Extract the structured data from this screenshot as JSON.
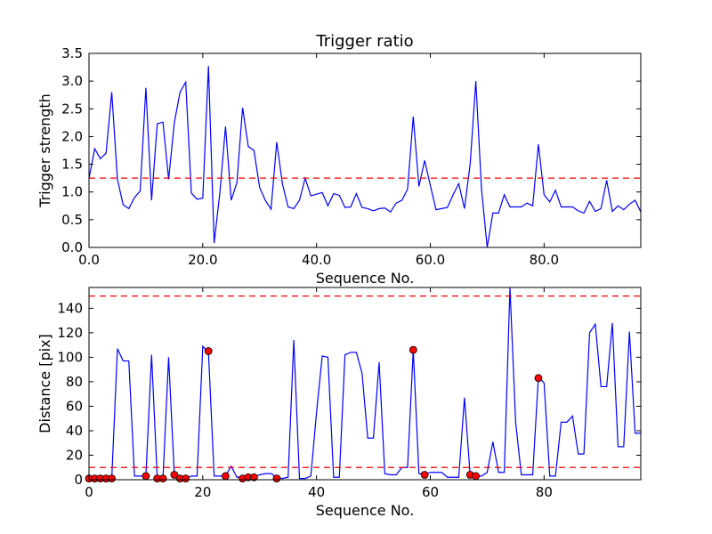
{
  "chart_data": [
    {
      "type": "line",
      "title": "Trigger ratio",
      "xlabel": "Sequence No.",
      "ylabel": "Trigger strength",
      "xlim": [
        0,
        97
      ],
      "ylim": [
        0,
        3.5
      ],
      "xticks": [
        0,
        20,
        40,
        60,
        80
      ],
      "yticks": [
        0.0,
        0.5,
        1.0,
        1.5,
        2.0,
        2.5,
        3.0,
        3.5
      ],
      "tick_format": "fixed1",
      "grid": false,
      "series": [
        {
          "color": "#0000ff",
          "x": [
            0,
            1,
            2,
            3,
            4,
            5,
            6,
            7,
            8,
            9,
            10,
            11,
            12,
            13,
            14,
            15,
            16,
            17,
            18,
            19,
            20,
            21,
            22,
            23,
            24,
            25,
            26,
            27,
            28,
            29,
            30,
            31,
            32,
            33,
            34,
            35,
            36,
            37,
            38,
            39,
            40,
            41,
            42,
            43,
            44,
            45,
            46,
            47,
            48,
            49,
            50,
            51,
            52,
            53,
            54,
            55,
            56,
            57,
            58,
            59,
            60,
            61,
            62,
            63,
            64,
            65,
            66,
            67,
            68,
            69,
            70,
            71,
            72,
            73,
            74,
            75,
            76,
            77,
            78,
            79,
            80,
            81,
            82,
            83,
            84,
            85,
            86,
            87,
            88,
            89,
            90,
            91,
            92,
            93,
            94,
            95,
            96,
            97
          ],
          "values": [
            1.25,
            1.78,
            1.6,
            1.7,
            2.8,
            1.23,
            0.77,
            0.7,
            0.9,
            1.02,
            2.88,
            0.85,
            2.23,
            2.26,
            1.23,
            2.25,
            2.8,
            2.98,
            0.98,
            0.87,
            0.89,
            3.27,
            0.08,
            0.98,
            2.18,
            0.85,
            1.17,
            2.52,
            1.82,
            1.75,
            1.08,
            0.85,
            0.69,
            1.9,
            1.15,
            0.73,
            0.7,
            0.85,
            1.25,
            0.93,
            0.96,
            0.99,
            0.75,
            0.97,
            0.94,
            0.72,
            0.73,
            0.97,
            0.72,
            0.7,
            0.66,
            0.7,
            0.71,
            0.64,
            0.8,
            0.85,
            1.05,
            2.36,
            1.1,
            1.57,
            1.12,
            0.68,
            0.7,
            0.72,
            0.95,
            1.15,
            0.7,
            1.5,
            3.0,
            1.05,
            0.0,
            0.62,
            0.62,
            0.95,
            0.73,
            0.73,
            0.73,
            0.8,
            0.75,
            1.86,
            0.95,
            0.82,
            1.03,
            0.73,
            0.73,
            0.73,
            0.66,
            0.62,
            0.83,
            0.65,
            0.7,
            1.21,
            0.65,
            0.75,
            0.68,
            0.78,
            0.85,
            0.64
          ]
        }
      ],
      "hlines": [
        {
          "y": 1.25,
          "color": "#ff0000",
          "style": "dashed"
        }
      ]
    },
    {
      "type": "line",
      "title": "",
      "xlabel": "Sequence No.",
      "ylabel": "Distance [pix]",
      "xlim": [
        0,
        97
      ],
      "ylim": [
        0,
        157
      ],
      "xticks": [
        0,
        20,
        40,
        60,
        80
      ],
      "yticks": [
        0,
        20,
        40,
        60,
        80,
        100,
        120,
        140
      ],
      "tick_format": "int",
      "grid": false,
      "series": [
        {
          "color": "#0000ff",
          "x": [
            0,
            1,
            2,
            3,
            4,
            5,
            6,
            7,
            8,
            9,
            10,
            11,
            12,
            13,
            14,
            15,
            16,
            17,
            18,
            19,
            20,
            21,
            22,
            23,
            24,
            25,
            26,
            27,
            28,
            29,
            30,
            31,
            32,
            33,
            34,
            35,
            36,
            37,
            38,
            39,
            40,
            41,
            42,
            43,
            44,
            45,
            46,
            47,
            48,
            49,
            50,
            51,
            52,
            53,
            54,
            55,
            56,
            57,
            58,
            59,
            60,
            61,
            62,
            63,
            64,
            65,
            66,
            67,
            68,
            69,
            70,
            71,
            72,
            73,
            74,
            75,
            76,
            77,
            78,
            79,
            80,
            81,
            82,
            83,
            84,
            85,
            86,
            87,
            88,
            89,
            90,
            91,
            92,
            93,
            94,
            95,
            96,
            97
          ],
          "values": [
            1,
            2,
            1,
            1,
            1,
            107,
            97,
            97,
            3,
            3,
            3,
            102,
            1,
            1,
            100,
            4,
            1,
            1,
            3,
            3,
            109,
            104,
            3,
            3,
            3,
            11,
            2,
            2,
            2,
            2,
            4,
            5,
            5,
            2,
            1,
            2,
            114,
            1,
            1,
            3,
            55,
            101,
            100,
            2,
            2,
            102,
            104,
            104,
            87,
            34,
            34,
            96,
            5,
            4,
            4,
            10,
            10,
            106,
            5,
            4,
            6,
            6,
            6,
            2,
            2,
            2,
            67,
            4,
            3,
            3,
            6,
            31,
            6,
            6,
            157,
            47,
            4,
            4,
            4,
            84,
            79,
            3,
            3,
            47,
            47,
            52,
            21,
            21,
            120,
            127,
            76,
            76,
            128,
            27,
            27,
            121,
            38,
            38
          ]
        }
      ],
      "markers": {
        "color": "#ff0000",
        "x": [
          0,
          1,
          2,
          3,
          4,
          10,
          12,
          13,
          15,
          16,
          17,
          21,
          24,
          27,
          28,
          29,
          33,
          57,
          59,
          67,
          68,
          79
        ],
        "values": [
          1,
          1,
          1,
          1,
          1,
          3,
          1,
          1,
          4,
          1,
          1,
          105,
          3,
          1,
          2,
          2,
          1,
          106,
          4,
          4,
          3,
          83
        ]
      },
      "hlines": [
        {
          "y": 10,
          "color": "#ff0000",
          "style": "dashed"
        },
        {
          "y": 150,
          "color": "#ff0000",
          "style": "dashed"
        }
      ]
    }
  ]
}
